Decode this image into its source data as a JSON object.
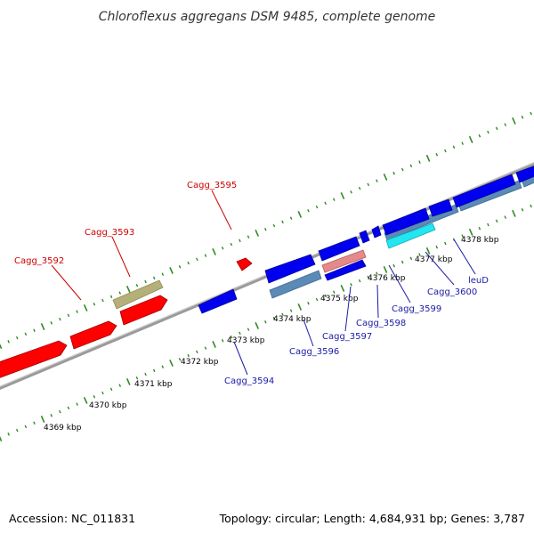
{
  "title": "Chloroflexus aggregans DSM 9485, complete genome",
  "footer": {
    "accession": "Accession: NC_011831",
    "summary": "Topology: circular; Length: 4,684,931 bp; Genes: 3,787"
  },
  "colors": {
    "forward_label": "#cc0000",
    "reverse_label": "#1a1aa6",
    "forward_gene": "#ff0000",
    "reverse_gene": "#0000ee",
    "pseudo_gene": "#b5b07a",
    "feature_steel": "#5a8ab5",
    "feature_pink": "#e48a8a",
    "feature_cyan": "#22e6f0",
    "backbone": "#9a9a9a",
    "tick": "#2e8b22"
  },
  "tick_labels": [
    "4369 kbp",
    "4370 kbp",
    "4371 kbp",
    "4372 kbp",
    "4373 kbp",
    "4374 kbp",
    "4375 kbp",
    "4376 kbp",
    "4377 kbp",
    "4378 kbp"
  ],
  "forward_labels": [
    "Cagg_3592",
    "Cagg_3593",
    "Cagg_3595"
  ],
  "reverse_labels": [
    "Cagg_3594",
    "Cagg_3596",
    "Cagg_3597",
    "Cagg_3598",
    "Cagg_3599",
    "Cagg_3600",
    "leuD"
  ]
}
